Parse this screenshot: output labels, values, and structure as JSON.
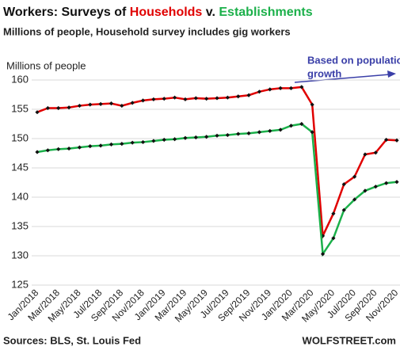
{
  "chart_data": {
    "type": "line",
    "title": [
      "Workers: Surveys of ",
      "Households",
      " v. ",
      "Establishments"
    ],
    "title_colors": [
      "#111111",
      "#e00000",
      "#111111",
      "#1bb04a"
    ],
    "subtitle": "Millions of people, Household survey includes gig workers",
    "y_label": "Millions of people",
    "annotation": [
      "Based on population",
      "growth"
    ],
    "annotation_color": "#3a3fa8",
    "source": "Sources: BLS, St. Louis Fed",
    "brand": "WOLFSTREET.com",
    "categories": [
      "Jan/2018",
      null,
      "Mar/2018",
      null,
      "May/2018",
      null,
      "Jul/2018",
      null,
      "Sep/2018",
      null,
      "Nov/2018",
      null,
      "Jan/2019",
      null,
      "Mar/2019",
      null,
      "May/2019",
      null,
      "Jul/2019",
      null,
      "Sep/2019",
      null,
      "Nov/2019",
      null,
      "Jan/2020",
      null,
      "Mar/2020",
      null,
      "May/2020",
      null,
      "Jul/2020",
      null,
      "Sep/2020",
      null,
      "Nov/2020"
    ],
    "series": [
      {
        "name": "Households",
        "color": "#e00000",
        "values": [
          154.5,
          155.2,
          155.2,
          155.3,
          155.6,
          155.8,
          155.9,
          156.0,
          155.6,
          156.1,
          156.5,
          156.7,
          156.8,
          157.0,
          156.7,
          156.9,
          156.8,
          156.9,
          157.0,
          157.2,
          157.4,
          158.0,
          158.4,
          158.6,
          158.6,
          158.8,
          155.8,
          133.4,
          137.2,
          142.2,
          143.5,
          147.3,
          147.6,
          149.8,
          149.7
        ]
      },
      {
        "name": "Establishments",
        "color": "#1bb04a",
        "values": [
          147.7,
          148.0,
          148.2,
          148.3,
          148.5,
          148.7,
          148.8,
          149.0,
          149.1,
          149.3,
          149.4,
          149.6,
          149.8,
          149.9,
          150.1,
          150.2,
          150.3,
          150.5,
          150.6,
          150.8,
          150.9,
          151.1,
          151.3,
          151.5,
          152.2,
          152.5,
          151.1,
          130.3,
          133.0,
          137.8,
          139.6,
          141.1,
          141.8,
          142.4,
          142.6
        ]
      }
    ],
    "marker_color": "#111111",
    "ylim": [
      125,
      160
    ],
    "yticks": [
      125,
      130,
      135,
      140,
      145,
      150,
      155,
      160
    ],
    "grid": true
  }
}
